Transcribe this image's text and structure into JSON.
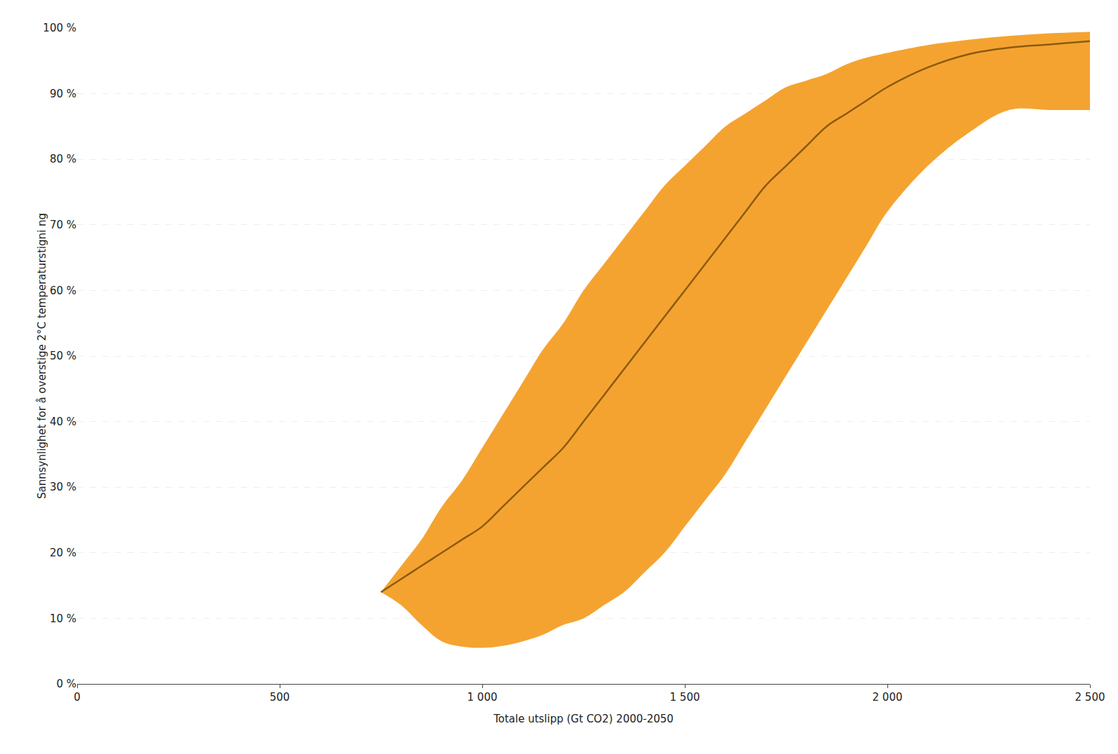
{
  "chart_data": {
    "type": "line",
    "xlabel": "Totale utslipp (Gt CO2) 2000-2050",
    "ylabel": "Sannsynlighet for å overstige 2°C temperaturstigni ng",
    "xlim": [
      0,
      2500
    ],
    "ylim": [
      0,
      1.0
    ],
    "xticks": [
      0,
      500,
      {
        "value": 1000,
        "label": "1 000"
      },
      {
        "value": 1500,
        "label": "1 500"
      },
      {
        "value": 2000,
        "label": "2 000"
      },
      {
        "value": 2500,
        "label": "2 500"
      }
    ],
    "yticks": [
      {
        "value": 0,
        "label": "0 %"
      },
      {
        "value": 0.1,
        "label": "10 %"
      },
      {
        "value": 0.2,
        "label": "20 %"
      },
      {
        "value": 0.3,
        "label": "30 %"
      },
      {
        "value": 0.4,
        "label": "40 %"
      },
      {
        "value": 0.5,
        "label": "50 %"
      },
      {
        "value": 0.6,
        "label": "60 %"
      },
      {
        "value": 0.7,
        "label": "70 %"
      },
      {
        "value": 0.8,
        "label": "80 %"
      },
      {
        "value": 0.9,
        "label": "90 %"
      },
      {
        "value": 1.0,
        "label": "100 %"
      }
    ],
    "grid": "y",
    "x": [
      750,
      800,
      850,
      900,
      950,
      1000,
      1050,
      1100,
      1150,
      1200,
      1250,
      1300,
      1350,
      1400,
      1450,
      1500,
      1550,
      1600,
      1650,
      1700,
      1750,
      1800,
      1850,
      1900,
      1950,
      2000,
      2100,
      2200,
      2300,
      2400,
      2500
    ],
    "series": [
      {
        "type": "area",
        "color": "#F5A330",
        "lower": [
          0.14,
          0.12,
          0.09,
          0.065,
          0.057,
          0.055,
          0.058,
          0.065,
          0.075,
          0.09,
          0.1,
          0.12,
          0.14,
          0.17,
          0.2,
          0.24,
          0.28,
          0.32,
          0.37,
          0.42,
          0.47,
          0.52,
          0.57,
          0.62,
          0.67,
          0.72,
          0.79,
          0.84,
          0.875,
          0.875,
          0.875
        ],
        "upper": [
          0.14,
          0.18,
          0.22,
          0.27,
          0.31,
          0.36,
          0.41,
          0.46,
          0.51,
          0.55,
          0.6,
          0.64,
          0.68,
          0.72,
          0.76,
          0.79,
          0.82,
          0.85,
          0.87,
          0.89,
          0.91,
          0.92,
          0.93,
          0.945,
          0.955,
          0.962,
          0.974,
          0.982,
          0.988,
          0.992,
          0.994
        ]
      },
      {
        "type": "line",
        "color": "#8B5B10",
        "values": [
          0.14,
          0.16,
          0.18,
          0.2,
          0.22,
          0.24,
          0.27,
          0.3,
          0.33,
          0.36,
          0.4,
          0.44,
          0.48,
          0.52,
          0.56,
          0.6,
          0.64,
          0.68,
          0.72,
          0.76,
          0.79,
          0.82,
          0.85,
          0.87,
          0.89,
          0.91,
          0.94,
          0.96,
          0.97,
          0.975,
          0.98
        ]
      }
    ]
  }
}
